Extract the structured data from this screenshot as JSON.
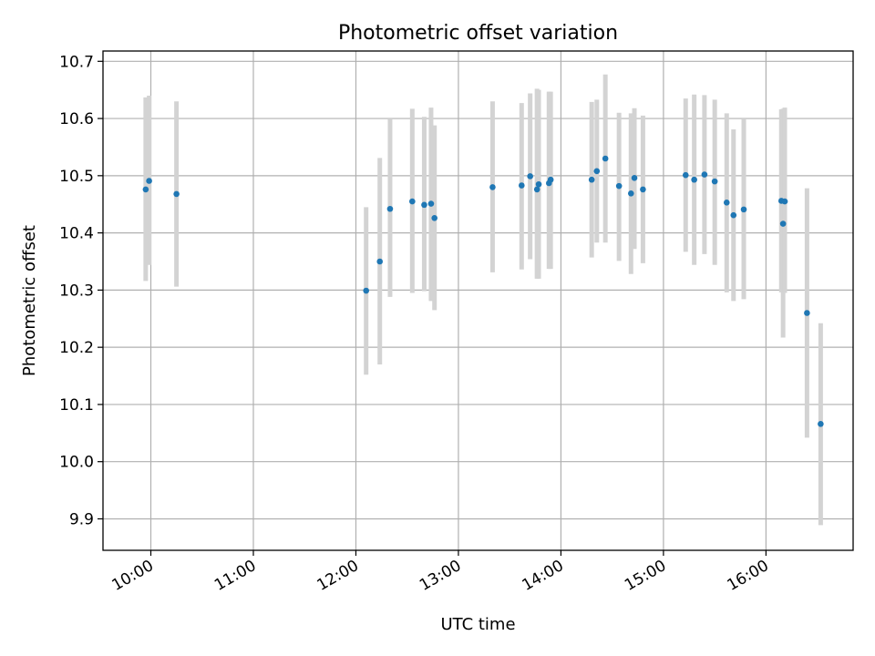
{
  "chart_data": {
    "type": "scatter",
    "title": "Photometric offset variation",
    "xlabel": "UTC time",
    "ylabel": "Photometric offset",
    "xlim": [
      "09:32",
      "16:51"
    ],
    "ylim": [
      9.845,
      10.718
    ],
    "grid": true,
    "x_ticks": [
      "10:00",
      "11:00",
      "12:00",
      "13:00",
      "14:00",
      "15:00",
      "16:00"
    ],
    "y_ticks": [
      9.9,
      10.0,
      10.1,
      10.2,
      10.3,
      10.4,
      10.5,
      10.6,
      10.7
    ],
    "y_tick_labels": [
      "9.9",
      "10.0",
      "10.1",
      "10.2",
      "10.3",
      "10.4",
      "10.5",
      "10.6",
      "10.7"
    ],
    "colors": {
      "points": "#1f77b4",
      "error_bars": "#d3d3d3",
      "grid": "#b0b0b0"
    },
    "points": [
      {
        "t": "09:57",
        "y": 10.476,
        "lo": 10.316,
        "hi": 10.637
      },
      {
        "t": "09:59",
        "y": 10.491,
        "lo": 10.344,
        "hi": 10.64
      },
      {
        "t": "10:15",
        "y": 10.468,
        "lo": 10.306,
        "hi": 10.63
      },
      {
        "t": "12:06",
        "y": 10.299,
        "lo": 10.152,
        "hi": 10.445
      },
      {
        "t": "12:14",
        "y": 10.35,
        "lo": 10.17,
        "hi": 10.531
      },
      {
        "t": "12:20",
        "y": 10.442,
        "lo": 10.288,
        "hi": 10.6
      },
      {
        "t": "12:33",
        "y": 10.455,
        "lo": 10.295,
        "hi": 10.617
      },
      {
        "t": "12:40",
        "y": 10.449,
        "lo": 10.298,
        "hi": 10.603
      },
      {
        "t": "12:44",
        "y": 10.451,
        "lo": 10.281,
        "hi": 10.619
      },
      {
        "t": "12:46",
        "y": 10.426,
        "lo": 10.265,
        "hi": 10.588
      },
      {
        "t": "13:20",
        "y": 10.48,
        "lo": 10.331,
        "hi": 10.63
      },
      {
        "t": "13:37",
        "y": 10.483,
        "lo": 10.336,
        "hi": 10.627
      },
      {
        "t": "13:42",
        "y": 10.499,
        "lo": 10.354,
        "hi": 10.644
      },
      {
        "t": "13:46",
        "y": 10.476,
        "lo": 10.32,
        "hi": 10.652
      },
      {
        "t": "13:47",
        "y": 10.485,
        "lo": 10.32,
        "hi": 10.65
      },
      {
        "t": "13:53",
        "y": 10.487,
        "lo": 10.337,
        "hi": 10.647
      },
      {
        "t": "13:54",
        "y": 10.493,
        "lo": 10.337,
        "hi": 10.647
      },
      {
        "t": "14:18",
        "y": 10.493,
        "lo": 10.357,
        "hi": 10.629
      },
      {
        "t": "14:21",
        "y": 10.508,
        "lo": 10.383,
        "hi": 10.633
      },
      {
        "t": "14:26",
        "y": 10.53,
        "lo": 10.383,
        "hi": 10.677
      },
      {
        "t": "14:34",
        "y": 10.482,
        "lo": 10.351,
        "hi": 10.61
      },
      {
        "t": "14:41",
        "y": 10.469,
        "lo": 10.328,
        "hi": 10.609
      },
      {
        "t": "14:43",
        "y": 10.496,
        "lo": 10.372,
        "hi": 10.618
      },
      {
        "t": "14:48",
        "y": 10.476,
        "lo": 10.347,
        "hi": 10.605
      },
      {
        "t": "15:13",
        "y": 10.501,
        "lo": 10.367,
        "hi": 10.635
      },
      {
        "t": "15:18",
        "y": 10.493,
        "lo": 10.344,
        "hi": 10.642
      },
      {
        "t": "15:24",
        "y": 10.502,
        "lo": 10.363,
        "hi": 10.641
      },
      {
        "t": "15:30",
        "y": 10.49,
        "lo": 10.344,
        "hi": 10.633
      },
      {
        "t": "15:37",
        "y": 10.453,
        "lo": 10.296,
        "hi": 10.609
      },
      {
        "t": "15:41",
        "y": 10.431,
        "lo": 10.281,
        "hi": 10.581
      },
      {
        "t": "15:47",
        "y": 10.441,
        "lo": 10.284,
        "hi": 10.6
      },
      {
        "t": "16:09",
        "y": 10.456,
        "lo": 10.296,
        "hi": 10.616
      },
      {
        "t": "16:10",
        "y": 10.416,
        "lo": 10.217,
        "hi": 10.617
      },
      {
        "t": "16:11",
        "y": 10.455,
        "lo": 10.295,
        "hi": 10.619
      },
      {
        "t": "16:24",
        "y": 10.26,
        "lo": 10.042,
        "hi": 10.478
      },
      {
        "t": "16:32",
        "y": 10.066,
        "lo": 9.889,
        "hi": 10.242
      }
    ]
  }
}
